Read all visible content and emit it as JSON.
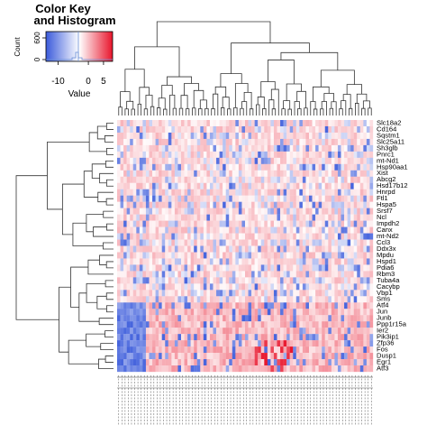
{
  "chart_data": {
    "type": "heatmap",
    "color_key": {
      "title_line1": "Color Key",
      "title_line2": "and Histogram",
      "y_label": "Count",
      "y_ticks": [
        "0",
        "600"
      ],
      "x_ticks": [
        "-10",
        "0",
        "5"
      ],
      "x_tick_values": [
        -10,
        0,
        5
      ],
      "x_label": "Value",
      "value_range": [
        -14,
        8
      ],
      "colors": {
        "low": "#3b5bdb",
        "mid": "#ffffff",
        "high": "#e8142b"
      }
    },
    "row_labels": [
      "Slc18a2",
      "Cd164",
      "Sqstm1",
      "Slc25a11",
      "Sh3glb",
      "Pnrc1",
      "mt-Nd1",
      "Hsp90aa1",
      "Xist",
      "Abcg2",
      "Hsd17b12",
      "Hnrpd",
      "Ftl1",
      "Hspa5",
      "Srsf7",
      "Ncl",
      "Impdh2",
      "Canx",
      "mt-Nd2",
      "Ccl3",
      "Ddx3x",
      "Mpdu",
      "Hspd1",
      "Pdia6",
      "Rbm3",
      "Tuba4a",
      "Cacybp",
      "Vbp1",
      "Sms",
      "Atf4",
      "Jun",
      "Junb",
      "Ppp1r15a",
      "Ier2",
      "Pik3ip1",
      "Zfp36",
      "Fos",
      "Dusp1",
      "Egr1",
      "Atf3"
    ],
    "num_columns": 80,
    "grid": false,
    "legend_position": "top-left"
  }
}
